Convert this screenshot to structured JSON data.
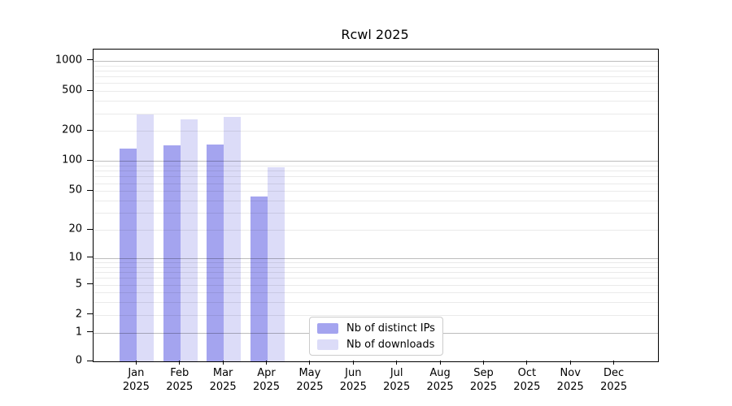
{
  "chart_data": {
    "type": "bar",
    "title": "Rcwl 2025",
    "x_categories": [
      "Jan",
      "Feb",
      "Mar",
      "Apr",
      "May",
      "Jun",
      "Jul",
      "Aug",
      "Sep",
      "Oct",
      "Nov",
      "Dec"
    ],
    "x_year_suffix": "2025",
    "series": [
      {
        "name": "Nb of distinct IPs",
        "color": "#a4a4ef",
        "values": [
          133,
          143,
          146,
          44,
          0,
          0,
          0,
          0,
          0,
          0,
          0,
          0
        ]
      },
      {
        "name": "Nb of downloads",
        "color": "#dcdcf8",
        "values": [
          292,
          261,
          276,
          86,
          0,
          0,
          0,
          0,
          0,
          0,
          0,
          0
        ]
      }
    ],
    "y_scale": "log1p",
    "y_ticks": [
      0,
      1,
      2,
      5,
      10,
      20,
      50,
      100,
      200,
      500,
      1000
    ],
    "ylim": [
      0,
      1000
    ],
    "grid": "horizontal major and minor gridlines",
    "legend_position": "inside bottom-center"
  },
  "colors": {
    "bar_distinct_ips": "#a4a4ef",
    "bar_downloads": "#dcdcf8",
    "major_gridline": "#bfbfbf",
    "minor_gridline": "#ebebeb",
    "axis_frame": "#000000",
    "legend_border": "#cccccc",
    "background": "#ffffff"
  }
}
